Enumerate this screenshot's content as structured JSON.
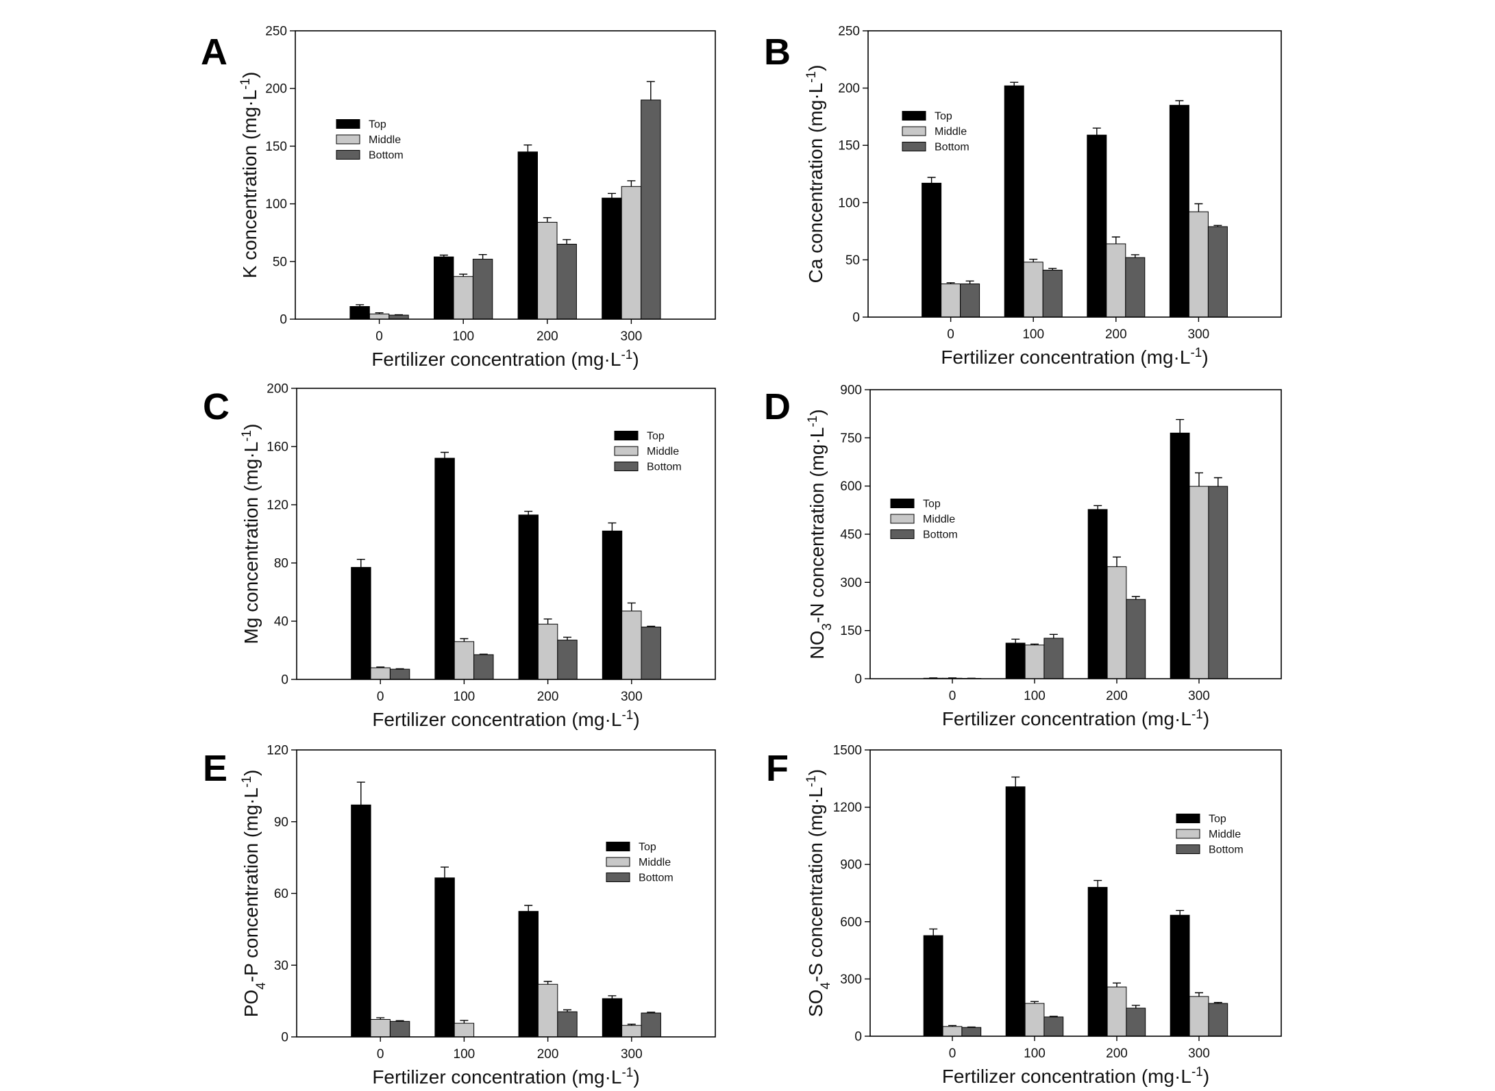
{
  "chart_data": [
    {
      "panel": "A",
      "type": "bar",
      "categories": [
        "0",
        "100",
        "200",
        "300"
      ],
      "series": [
        {
          "name": "Top",
          "color": "#000000",
          "values": [
            11,
            54,
            145,
            105
          ],
          "errors": [
            1.5,
            1.5,
            6,
            4
          ]
        },
        {
          "name": "Middle",
          "color": "#c8c8c8",
          "values": [
            4.5,
            37,
            84,
            115
          ],
          "errors": [
            1,
            2,
            4,
            5
          ]
        },
        {
          "name": "Bottom",
          "color": "#5e5e5e",
          "values": [
            3.5,
            52,
            65,
            190
          ],
          "errors": [
            0.3,
            4,
            4,
            16
          ]
        }
      ],
      "ylabel": [
        {
          "t": "K concentration (mg·L"
        },
        {
          "t": "-1",
          "sup": true
        },
        {
          "t": ")"
        }
      ],
      "xlabel": [
        {
          "t": "Fertilizer concentration (mg·L"
        },
        {
          "t": "-1",
          "sup": true
        },
        {
          "t": ")"
        }
      ],
      "ylim": [
        0,
        250
      ],
      "yticks": [
        0,
        50,
        100,
        150,
        200,
        250
      ]
    },
    {
      "panel": "B",
      "type": "bar",
      "categories": [
        "0",
        "100",
        "200",
        "300"
      ],
      "series": [
        {
          "name": "Top",
          "color": "#000000",
          "values": [
            117,
            202,
            159,
            185
          ],
          "errors": [
            5,
            3,
            6,
            4
          ]
        },
        {
          "name": "Middle",
          "color": "#c8c8c8",
          "values": [
            29,
            48,
            64,
            92
          ],
          "errors": [
            1,
            2.5,
            6,
            7
          ]
        },
        {
          "name": "Bottom",
          "color": "#5e5e5e",
          "values": [
            29,
            41,
            52,
            79
          ],
          "errors": [
            2.5,
            1.5,
            2.5,
            1
          ]
        }
      ],
      "ylabel": [
        {
          "t": "Ca concentration (mg·L"
        },
        {
          "t": "-1",
          "sup": true
        },
        {
          "t": ")"
        }
      ],
      "xlabel": [
        {
          "t": "Fertilizer concentration (mg·L"
        },
        {
          "t": "-1",
          "sup": true
        },
        {
          "t": ")"
        }
      ],
      "ylim": [
        0,
        250
      ],
      "yticks": [
        0,
        50,
        100,
        150,
        200,
        250
      ]
    },
    {
      "panel": "C",
      "type": "bar",
      "categories": [
        "0",
        "100",
        "200",
        "300"
      ],
      "series": [
        {
          "name": "Top",
          "color": "#000000",
          "values": [
            77,
            152,
            113,
            102
          ],
          "errors": [
            5.5,
            4,
            2.5,
            5.5
          ]
        },
        {
          "name": "Middle",
          "color": "#c8c8c8",
          "values": [
            8,
            26,
            38,
            47
          ],
          "errors": [
            0.5,
            2,
            3.5,
            5.5
          ]
        },
        {
          "name": "Bottom",
          "color": "#5e5e5e",
          "values": [
            7,
            17,
            27,
            36
          ],
          "errors": [
            0.3,
            0.3,
            2,
            0.5
          ]
        }
      ],
      "ylabel": [
        {
          "t": "Mg concentration (mg·L"
        },
        {
          "t": "-1",
          "sup": true
        },
        {
          "t": ")"
        }
      ],
      "xlabel": [
        {
          "t": "Fertilizer concentration (mg·L"
        },
        {
          "t": "-1",
          "sup": true
        },
        {
          "t": ")"
        }
      ],
      "ylim": [
        0,
        200
      ],
      "yticks": [
        0,
        40,
        80,
        120,
        160,
        200
      ]
    },
    {
      "panel": "D",
      "type": "bar",
      "categories": [
        "0",
        "100",
        "200",
        "300"
      ],
      "series": [
        {
          "name": "Top",
          "color": "#000000",
          "values": [
            1.5,
            111,
            527,
            765
          ],
          "errors": [
            1,
            12,
            12,
            42
          ]
        },
        {
          "name": "Middle",
          "color": "#c8c8c8",
          "values": [
            1.5,
            105,
            349,
            599
          ],
          "errors": [
            1,
            3,
            30,
            42
          ]
        },
        {
          "name": "Bottom",
          "color": "#5e5e5e",
          "values": [
            1,
            126,
            247,
            599
          ],
          "errors": [
            0.5,
            12,
            9,
            27
          ]
        }
      ],
      "ylabel": [
        {
          "t": "NO"
        },
        {
          "t": "3",
          "sub": true
        },
        {
          "t": "-N concentration (mg·L"
        },
        {
          "t": "-1",
          "sup": true
        },
        {
          "t": ")"
        }
      ],
      "xlabel": [
        {
          "t": "Fertilizer concentration (mg·L"
        },
        {
          "t": "-1",
          "sup": true
        },
        {
          "t": ")"
        }
      ],
      "ylim": [
        0,
        900
      ],
      "yticks": [
        0,
        150,
        300,
        450,
        600,
        750,
        900
      ]
    },
    {
      "panel": "E",
      "type": "bar",
      "categories": [
        "0",
        "100",
        "200",
        "300"
      ],
      "series": [
        {
          "name": "Top",
          "color": "#000000",
          "values": [
            97,
            66.5,
            52.5,
            16
          ],
          "errors": [
            9.5,
            4.5,
            2.5,
            1.2
          ]
        },
        {
          "name": "Middle",
          "color": "#c8c8c8",
          "values": [
            7.3,
            5.7,
            22,
            4.8
          ],
          "errors": [
            0.7,
            1.2,
            1.2,
            0.5
          ]
        },
        {
          "name": "Bottom",
          "color": "#5e5e5e",
          "values": [
            6.5,
            null,
            10.5,
            10
          ],
          "errors": [
            0.3,
            null,
            0.8,
            0.3
          ]
        }
      ],
      "ylabel": [
        {
          "t": "PO"
        },
        {
          "t": "4",
          "sub": true
        },
        {
          "t": "-P concentration (mg·L"
        },
        {
          "t": "-1",
          "sup": true
        },
        {
          "t": ")"
        }
      ],
      "xlabel": [
        {
          "t": "Fertilizer concentration (mg·L"
        },
        {
          "t": "-1",
          "sup": true
        },
        {
          "t": ")"
        }
      ],
      "ylim": [
        0,
        120
      ],
      "yticks": [
        0,
        30,
        60,
        90,
        120
      ]
    },
    {
      "panel": "F",
      "type": "bar",
      "categories": [
        "0",
        "100",
        "200",
        "300"
      ],
      "series": [
        {
          "name": "Top",
          "color": "#000000",
          "values": [
            527,
            1307,
            780,
            634
          ],
          "errors": [
            35,
            51,
            36,
            25
          ]
        },
        {
          "name": "Middle",
          "color": "#c8c8c8",
          "values": [
            51,
            172,
            258,
            208
          ],
          "errors": [
            5,
            10,
            21,
            20
          ]
        },
        {
          "name": "Bottom",
          "color": "#5e5e5e",
          "values": [
            46,
            101,
            147,
            172
          ],
          "errors": [
            2,
            3,
            15,
            5
          ]
        }
      ],
      "ylabel": [
        {
          "t": "SO"
        },
        {
          "t": "4",
          "sub": true
        },
        {
          "t": "-S concentration (mg·L"
        },
        {
          "t": "-1",
          "sup": true
        },
        {
          "t": ")"
        }
      ],
      "xlabel": [
        {
          "t": "Fertilizer concentration (mg·L"
        },
        {
          "t": "-1",
          "sup": true
        },
        {
          "t": ")"
        }
      ],
      "ylim": [
        0,
        1500
      ],
      "yticks": [
        0,
        300,
        600,
        900,
        1200,
        1500
      ]
    }
  ]
}
